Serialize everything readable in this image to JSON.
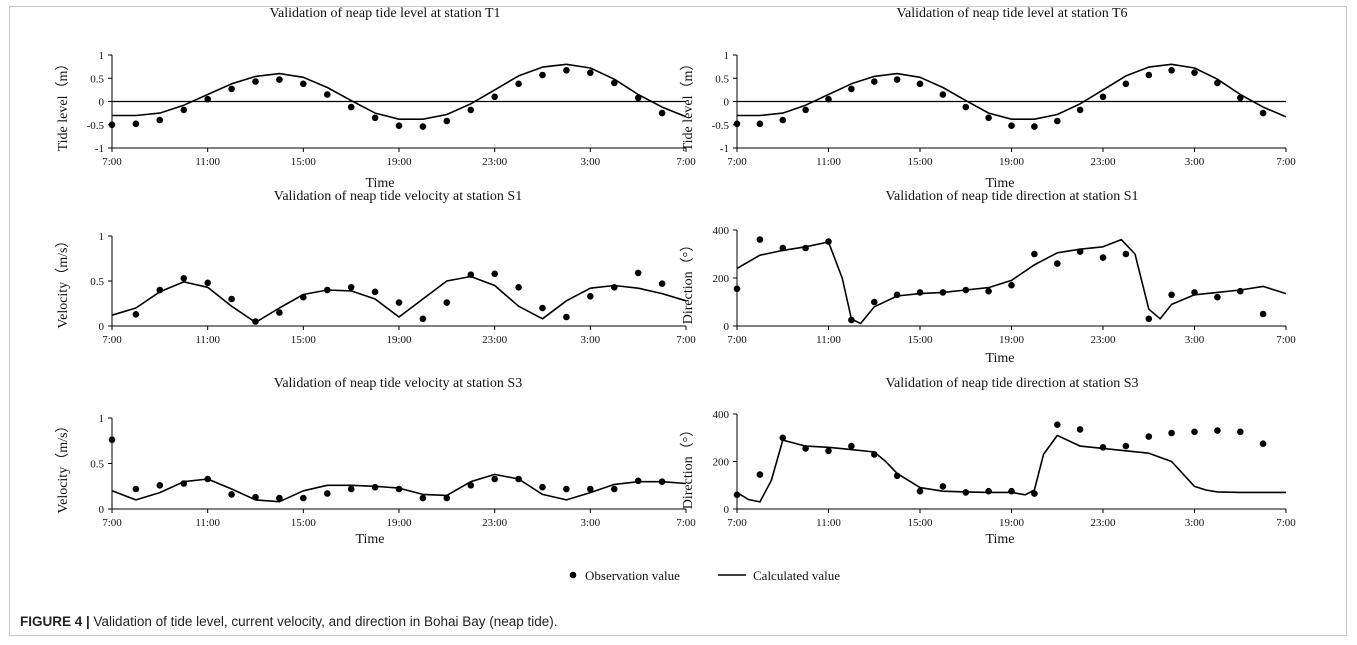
{
  "figure": {
    "caption_label": "FIGURE 4 |",
    "caption_text": " Validation of tide level, current velocity, and direction in Bohai Bay (neap tide)."
  },
  "legend": {
    "observation": "Observation value",
    "calculated": "Calculated value"
  },
  "chart_data": [
    {
      "id": "t1",
      "type": "scatter-line",
      "title": "Validation of neap tide level at station T1",
      "xlabel": "Time",
      "ylabel": "Tide level（m）",
      "x_ticks": [
        "7:00",
        "11:00",
        "15:00",
        "19:00",
        "23:00",
        "3:00",
        "7:00"
      ],
      "y_ticks": [
        -1,
        -0.5,
        0,
        0.5,
        1
      ],
      "y_tick_labels": [
        "-1",
        "-0.5",
        "0",
        "0.5",
        "1"
      ],
      "xlim": [
        0,
        24
      ],
      "ylim": [
        -1,
        1
      ],
      "zero_line": true,
      "observation": {
        "x": [
          0,
          1,
          2,
          3,
          4,
          5,
          6,
          7,
          8,
          9,
          10,
          11,
          12,
          13,
          14,
          15,
          16,
          17,
          18,
          19,
          20,
          21,
          22,
          23
        ],
        "y": [
          -0.5,
          -0.48,
          -0.4,
          -0.18,
          0.05,
          0.27,
          0.43,
          0.47,
          0.38,
          0.15,
          -0.12,
          -0.35,
          -0.52,
          -0.54,
          -0.42,
          -0.18,
          0.1,
          0.38,
          0.57,
          0.67,
          0.62,
          0.4,
          0.08,
          -0.25
        ]
      },
      "calculated": {
        "x": [
          0,
          1,
          2,
          3,
          4,
          5,
          6,
          7,
          8,
          9,
          10,
          11,
          12,
          13,
          14,
          15,
          16,
          17,
          18,
          19,
          20,
          21,
          22,
          23,
          24
        ],
        "y": [
          -0.3,
          -0.3,
          -0.25,
          -0.08,
          0.15,
          0.38,
          0.54,
          0.6,
          0.52,
          0.3,
          0.02,
          -0.25,
          -0.38,
          -0.38,
          -0.28,
          -0.05,
          0.25,
          0.55,
          0.74,
          0.8,
          0.72,
          0.48,
          0.15,
          -0.12,
          -0.33
        ]
      }
    },
    {
      "id": "t6",
      "type": "scatter-line",
      "title": "Validation of neap tide level at station T6",
      "xlabel": "Time",
      "ylabel": "Tide level（m）",
      "x_ticks": [
        "7:00",
        "11:00",
        "15:00",
        "19:00",
        "23:00",
        "3:00",
        "7:00"
      ],
      "y_ticks": [
        -1,
        -0.5,
        0,
        0.5,
        1
      ],
      "y_tick_labels": [
        "-1",
        "-0.5",
        "0",
        "0.5",
        "1"
      ],
      "xlim": [
        0,
        24
      ],
      "ylim": [
        -1,
        1
      ],
      "zero_line": true,
      "observation": {
        "x": [
          0,
          1,
          2,
          3,
          4,
          5,
          6,
          7,
          8,
          9,
          10,
          11,
          12,
          13,
          14,
          15,
          16,
          17,
          18,
          19,
          20,
          21,
          22,
          23
        ],
        "y": [
          -0.48,
          -0.48,
          -0.4,
          -0.18,
          0.05,
          0.27,
          0.43,
          0.47,
          0.38,
          0.15,
          -0.12,
          -0.35,
          -0.52,
          -0.54,
          -0.42,
          -0.18,
          0.1,
          0.38,
          0.57,
          0.67,
          0.62,
          0.4,
          0.08,
          -0.25
        ]
      },
      "calculated": {
        "x": [
          0,
          1,
          2,
          3,
          4,
          5,
          6,
          7,
          8,
          9,
          10,
          11,
          12,
          13,
          14,
          15,
          16,
          17,
          18,
          19,
          20,
          21,
          22,
          23,
          24
        ],
        "y": [
          -0.3,
          -0.3,
          -0.25,
          -0.08,
          0.15,
          0.38,
          0.54,
          0.6,
          0.52,
          0.3,
          0.02,
          -0.25,
          -0.38,
          -0.38,
          -0.28,
          -0.05,
          0.25,
          0.55,
          0.74,
          0.8,
          0.72,
          0.48,
          0.15,
          -0.12,
          -0.33
        ]
      }
    },
    {
      "id": "vs1",
      "type": "scatter-line",
      "title": "Validation of neap tide velocity at station S1",
      "xlabel": "",
      "ylabel": "Velocity（m/s）",
      "x_ticks": [
        "7:00",
        "11:00",
        "15:00",
        "19:00",
        "23:00",
        "3:00",
        "7:00"
      ],
      "y_ticks": [
        0,
        0.5,
        1
      ],
      "y_tick_labels": [
        "0",
        "0.5",
        "1"
      ],
      "xlim": [
        0,
        24
      ],
      "ylim": [
        0,
        1
      ],
      "zero_line": false,
      "observation": {
        "x": [
          1,
          2,
          3,
          4,
          5,
          6,
          7,
          8,
          9,
          10,
          11,
          12,
          13,
          14,
          15,
          16,
          17,
          18,
          19,
          20,
          21,
          22,
          23
        ],
        "y": [
          0.13,
          0.4,
          0.53,
          0.48,
          0.3,
          0.05,
          0.15,
          0.32,
          0.4,
          0.43,
          0.38,
          0.26,
          0.08,
          0.26,
          0.57,
          0.58,
          0.43,
          0.2,
          0.1,
          0.33,
          0.43,
          0.59,
          0.47
        ]
      },
      "calculated": {
        "x": [
          0,
          1,
          2,
          3,
          4,
          5,
          6,
          7,
          8,
          9,
          10,
          11,
          12,
          13,
          14,
          15,
          16,
          17,
          18,
          19,
          20,
          21,
          22,
          23,
          24
        ],
        "y": [
          0.12,
          0.2,
          0.38,
          0.49,
          0.43,
          0.22,
          0.04,
          0.2,
          0.35,
          0.4,
          0.39,
          0.3,
          0.1,
          0.3,
          0.5,
          0.55,
          0.45,
          0.22,
          0.08,
          0.28,
          0.42,
          0.45,
          0.42,
          0.36,
          0.28
        ]
      }
    },
    {
      "id": "ds1",
      "type": "scatter-line",
      "title": "Validation of neap tide direction at station S1",
      "xlabel": "Time",
      "ylabel": "Direction（°）",
      "x_ticks": [
        "7:00",
        "11:00",
        "15:00",
        "19:00",
        "23:00",
        "3:00",
        "7:00"
      ],
      "y_ticks": [
        0,
        200,
        400
      ],
      "y_tick_labels": [
        "0",
        "200",
        "400"
      ],
      "xlim": [
        0,
        24
      ],
      "ylim": [
        0,
        400
      ],
      "zero_line": false,
      "observation": {
        "x": [
          0,
          1,
          2,
          3,
          4,
          5,
          6,
          7,
          8,
          9,
          10,
          11,
          12,
          13,
          14,
          15,
          16,
          17,
          18,
          19,
          20,
          21,
          22,
          23
        ],
        "y": [
          155,
          360,
          325,
          325,
          352,
          25,
          100,
          130,
          140,
          140,
          150,
          145,
          170,
          300,
          260,
          310,
          285,
          300,
          30,
          130,
          140,
          120,
          145,
          50
        ]
      },
      "calculated": {
        "x": [
          0,
          1,
          2,
          3,
          4,
          4.6,
          5,
          5.4,
          6,
          7,
          8,
          9,
          10,
          11,
          12,
          13,
          14,
          15,
          16,
          16.8,
          17.4,
          18,
          18.5,
          19,
          20,
          21,
          22,
          23,
          24
        ],
        "y": [
          240,
          295,
          315,
          330,
          350,
          200,
          30,
          10,
          80,
          125,
          135,
          140,
          150,
          160,
          190,
          255,
          305,
          320,
          330,
          360,
          300,
          70,
          30,
          90,
          130,
          140,
          150,
          165,
          135
        ]
      }
    },
    {
      "id": "vs3",
      "type": "scatter-line",
      "title": "Validation of neap tide velocity at station S3",
      "xlabel": "Time",
      "ylabel": "Velocity（m/s）",
      "x_ticks": [
        "7:00",
        "11:00",
        "15:00",
        "19:00",
        "23:00",
        "3:00",
        "7:00"
      ],
      "y_ticks": [
        0,
        0.5,
        1
      ],
      "y_tick_labels": [
        "0",
        "0.5",
        "1"
      ],
      "xlim": [
        0,
        24
      ],
      "ylim": [
        0,
        1
      ],
      "zero_line": false,
      "observation": {
        "x": [
          0,
          1,
          2,
          3,
          4,
          5,
          6,
          7,
          8,
          9,
          10,
          11,
          12,
          13,
          14,
          15,
          16,
          17,
          18,
          19,
          20,
          21,
          22,
          23
        ],
        "y": [
          0.76,
          0.22,
          0.26,
          0.28,
          0.33,
          0.16,
          0.13,
          0.12,
          0.12,
          0.17,
          0.22,
          0.24,
          0.22,
          0.12,
          0.12,
          0.26,
          0.33,
          0.33,
          0.24,
          0.22,
          0.22,
          0.22,
          0.31,
          0.3
        ]
      },
      "calculated": {
        "x": [
          0,
          1,
          2,
          3,
          4,
          5,
          6,
          7,
          8,
          9,
          10,
          11,
          12,
          13,
          14,
          15,
          16,
          17,
          18,
          19,
          20,
          21,
          22,
          23,
          24
        ],
        "y": [
          0.2,
          0.1,
          0.18,
          0.3,
          0.33,
          0.22,
          0.1,
          0.08,
          0.2,
          0.26,
          0.26,
          0.25,
          0.23,
          0.16,
          0.15,
          0.3,
          0.38,
          0.33,
          0.16,
          0.1,
          0.18,
          0.27,
          0.3,
          0.3,
          0.28
        ]
      }
    },
    {
      "id": "ds3",
      "type": "scatter-line",
      "title": "Validation of neap tide direction at station S3",
      "xlabel": "Time",
      "ylabel": "Direction（°）",
      "x_ticks": [
        "7:00",
        "11:00",
        "15:00",
        "19:00",
        "23:00",
        "3:00",
        "7:00"
      ],
      "y_ticks": [
        0,
        200,
        400
      ],
      "y_tick_labels": [
        "0",
        "200",
        "400"
      ],
      "xlim": [
        0,
        24
      ],
      "ylim": [
        0,
        400
      ],
      "zero_line": false,
      "observation": {
        "x": [
          0,
          1,
          2,
          3,
          4,
          5,
          6,
          7,
          8,
          9,
          10,
          11,
          12,
          13,
          14,
          15,
          16,
          17,
          18,
          19,
          20,
          21,
          22,
          23
        ],
        "y": [
          60,
          145,
          300,
          255,
          245,
          265,
          230,
          140,
          75,
          95,
          70,
          75,
          75,
          65,
          355,
          335,
          260,
          265,
          305,
          320,
          325,
          330,
          325,
          275
        ]
      },
      "calculated": {
        "x": [
          0,
          0.5,
          1,
          1.5,
          2,
          3,
          4,
          5,
          6,
          6.5,
          7,
          8,
          9,
          10,
          11,
          12,
          12.6,
          13,
          13.4,
          14,
          15,
          16,
          17,
          18,
          19,
          20,
          20.5,
          21,
          22,
          23,
          24
        ],
        "y": [
          70,
          40,
          30,
          120,
          290,
          265,
          260,
          250,
          240,
          200,
          150,
          90,
          75,
          72,
          70,
          70,
          60,
          80,
          230,
          310,
          265,
          255,
          245,
          235,
          200,
          95,
          80,
          72,
          70,
          70,
          70
        ]
      }
    }
  ]
}
